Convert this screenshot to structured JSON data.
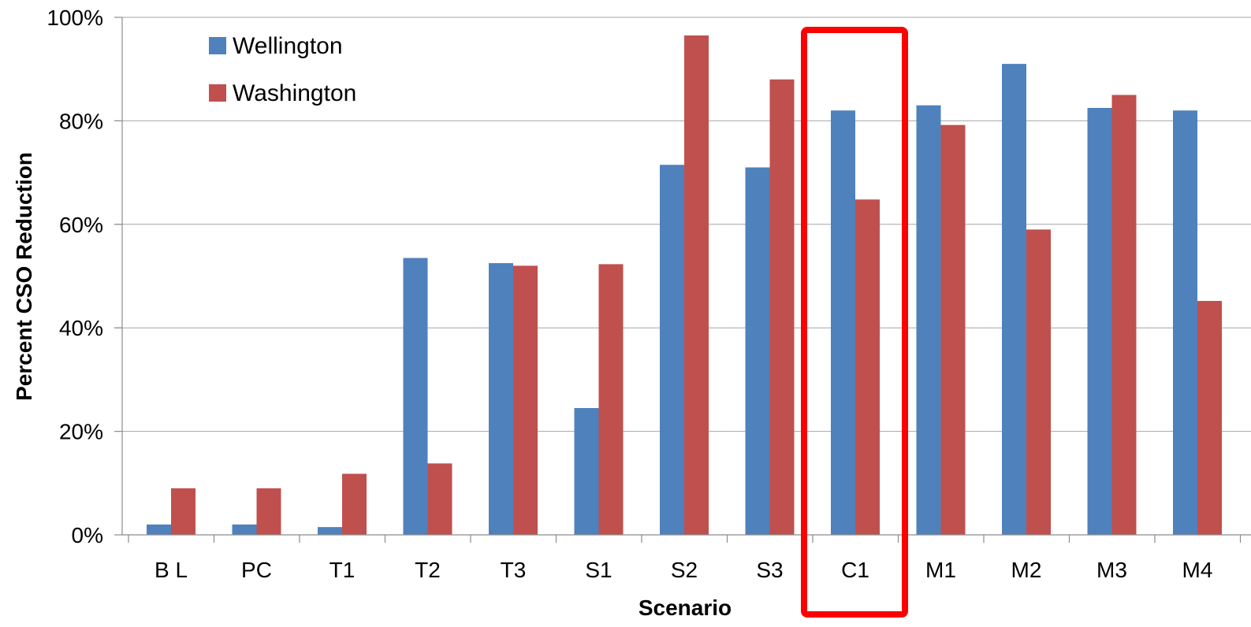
{
  "chart_data": {
    "type": "bar",
    "categories": [
      "B L",
      "PC",
      "T1",
      "T2",
      "T3",
      "S1",
      "S2",
      "S3",
      "C1",
      "M1",
      "M2",
      "M3",
      "M4"
    ],
    "series": [
      {
        "name": "Wellington",
        "values": [
          2,
          2,
          1.5,
          53.5,
          52.5,
          24.5,
          71.5,
          71,
          82,
          83,
          91,
          82.5,
          82
        ],
        "color": "#4f81bd"
      },
      {
        "name": "Washington",
        "values": [
          9,
          9,
          11.8,
          13.8,
          52,
          52.3,
          96.5,
          88,
          64.8,
          79.2,
          59,
          85,
          45.2
        ],
        "color": "#c0504d"
      }
    ],
    "xlabel": "Scenario",
    "ylabel": "Percent  CSO Reduction",
    "ylim": [
      0,
      100
    ],
    "yticks": [
      "0%",
      "20%",
      "40%",
      "60%",
      "80%",
      "100%"
    ],
    "grid": true,
    "legend": "top-left",
    "highlight": {
      "category": "C1",
      "color": "#ff0000"
    }
  }
}
